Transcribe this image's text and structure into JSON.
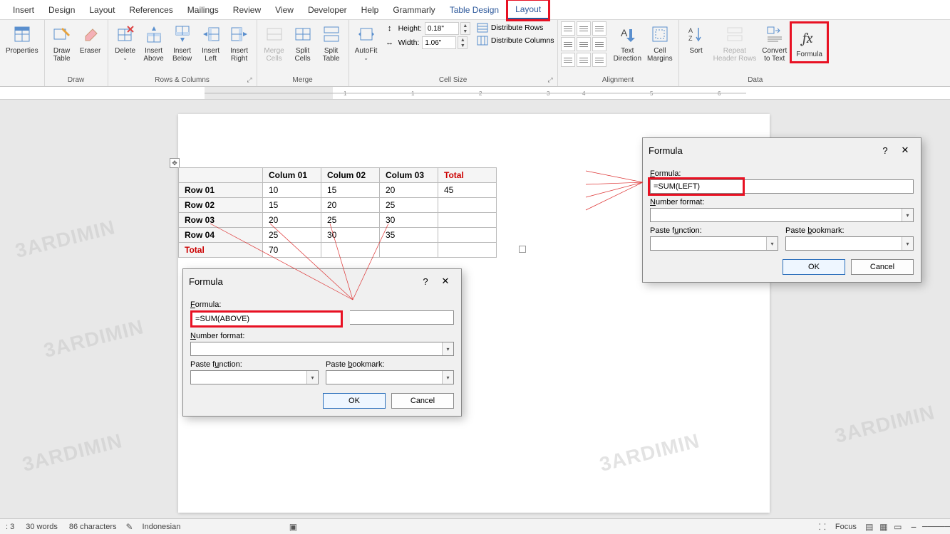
{
  "tabs": {
    "insert": "Insert",
    "design": "Design",
    "layout_main": "Layout",
    "references": "References",
    "mailings": "Mailings",
    "review": "Review",
    "view": "View",
    "developer": "Developer",
    "help": "Help",
    "grammarly": "Grammarly",
    "table_design": "Table Design",
    "layout": "Layout"
  },
  "ribbon": {
    "groups": {
      "draw": "Draw",
      "rows_cols": "Rows & Columns",
      "merge": "Merge",
      "cell_size": "Cell Size",
      "alignment": "Alignment",
      "data": "Data"
    },
    "btns": {
      "properties": "Properties",
      "draw_table": "Draw\nTable",
      "eraser": "Eraser",
      "delete": "Delete",
      "insert_above": "Insert\nAbove",
      "insert_below": "Insert\nBelow",
      "insert_left": "Insert\nLeft",
      "insert_right": "Insert\nRight",
      "merge_cells": "Merge\nCells",
      "split_cells": "Split\nCells",
      "split_table": "Split\nTable",
      "autofit": "AutoFit",
      "height": "Height:",
      "width": "Width:",
      "height_val": "0.18\"",
      "width_val": "1.06\"",
      "dist_rows": "Distribute Rows",
      "dist_cols": "Distribute Columns",
      "text_direction": "Text\nDirection",
      "cell_margins": "Cell\nMargins",
      "sort": "Sort",
      "repeat_hr": "Repeat\nHeader Rows",
      "convert": "Convert\nto Text",
      "formula": "Formula"
    }
  },
  "table": {
    "headers": [
      "",
      "Colum 01",
      "Colum 02",
      "Colum 03",
      "Total"
    ],
    "rows": [
      {
        "label": "Row 01",
        "cells": [
          "10",
          "15",
          "20",
          "45"
        ]
      },
      {
        "label": "Row 02",
        "cells": [
          "15",
          "20",
          "25",
          ""
        ]
      },
      {
        "label": "Row 03",
        "cells": [
          "20",
          "25",
          "30",
          ""
        ]
      },
      {
        "label": "Row 04",
        "cells": [
          "25",
          "30",
          "35",
          ""
        ]
      }
    ],
    "total_label": "Total",
    "total_first": "70"
  },
  "dialog1": {
    "title": "Formula",
    "formula_label": "Formula:",
    "formula_value": "=SUM(LEFT)",
    "numfmt": "Number format:",
    "pastefn": "Paste function:",
    "pastebm": "Paste bookmark:",
    "ok": "OK",
    "cancel": "Cancel"
  },
  "dialog2": {
    "title": "Formula",
    "formula_label": "Formula:",
    "formula_value": "=SUM(ABOVE)",
    "numfmt": "Number format:",
    "pastefn": "Paste function:",
    "pastebm": "Paste bookmark:",
    "ok": "OK",
    "cancel": "Cancel"
  },
  "status": {
    "page": ": 3",
    "words": "30 words",
    "chars": "86 characters",
    "lang": "Indonesian",
    "focus": "Focus"
  },
  "colors": {
    "accent": "#2b579a",
    "hl": "#e81123"
  },
  "watermark": "3ARDIMIN"
}
